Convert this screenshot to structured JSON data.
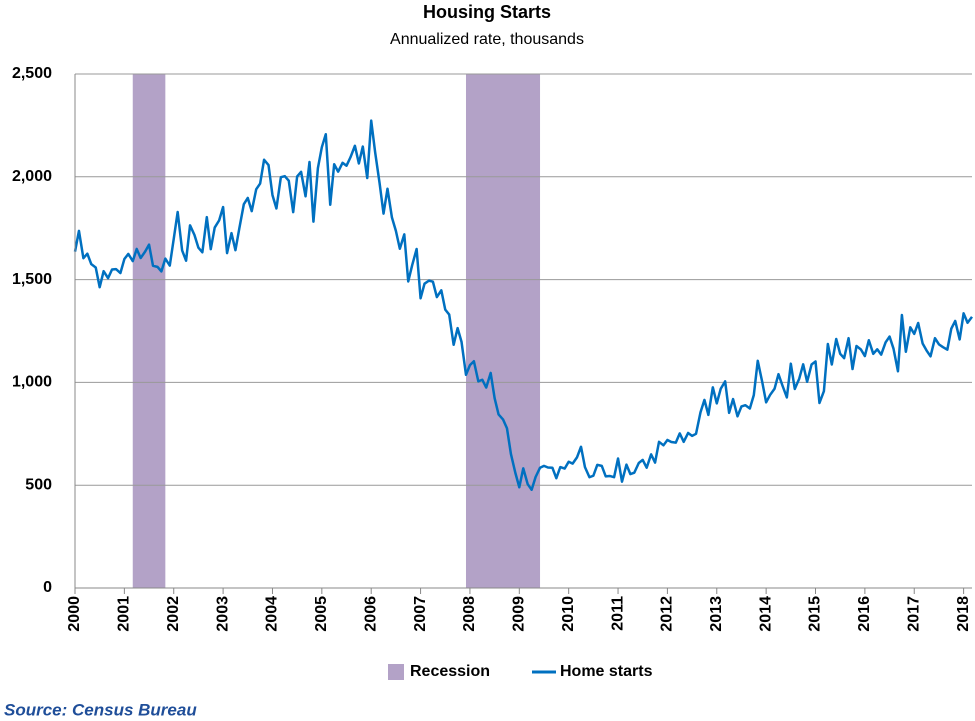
{
  "chart_data": {
    "type": "line",
    "title": "Housing Starts",
    "subtitle": "Annualized rate, thousands",
    "source": "Source: Census Bureau",
    "x": [
      2000,
      2000.08,
      2000.17,
      2000.25,
      2000.33,
      2000.42,
      2000.5,
      2000.58,
      2000.67,
      2000.75,
      2000.83,
      2000.92,
      2001,
      2001.08,
      2001.17,
      2001.25,
      2001.33,
      2001.42,
      2001.5,
      2001.58,
      2001.67,
      2001.75,
      2001.83,
      2001.92,
      2002,
      2002.08,
      2002.17,
      2002.25,
      2002.33,
      2002.42,
      2002.5,
      2002.58,
      2002.67,
      2002.75,
      2002.83,
      2002.92,
      2003,
      2003.08,
      2003.17,
      2003.25,
      2003.33,
      2003.42,
      2003.5,
      2003.58,
      2003.67,
      2003.75,
      2003.83,
      2003.92,
      2004,
      2004.08,
      2004.17,
      2004.25,
      2004.33,
      2004.42,
      2004.5,
      2004.58,
      2004.67,
      2004.75,
      2004.83,
      2004.92,
      2005,
      2005.08,
      2005.17,
      2005.25,
      2005.33,
      2005.42,
      2005.5,
      2005.58,
      2005.67,
      2005.75,
      2005.83,
      2005.92,
      2006,
      2006.08,
      2006.17,
      2006.25,
      2006.33,
      2006.42,
      2006.5,
      2006.58,
      2006.67,
      2006.75,
      2006.83,
      2006.92,
      2007,
      2007.08,
      2007.17,
      2007.25,
      2007.33,
      2007.42,
      2007.5,
      2007.58,
      2007.67,
      2007.75,
      2007.83,
      2007.92,
      2008,
      2008.08,
      2008.17,
      2008.25,
      2008.33,
      2008.42,
      2008.5,
      2008.58,
      2008.67,
      2008.75,
      2008.83,
      2008.92,
      2009,
      2009.08,
      2009.17,
      2009.25,
      2009.33,
      2009.42,
      2009.5,
      2009.58,
      2009.67,
      2009.75,
      2009.83,
      2009.92,
      2010,
      2010.08,
      2010.17,
      2010.25,
      2010.33,
      2010.42,
      2010.5,
      2010.58,
      2010.67,
      2010.75,
      2010.83,
      2010.92,
      2011,
      2011.08,
      2011.17,
      2011.25,
      2011.33,
      2011.42,
      2011.5,
      2011.58,
      2011.67,
      2011.75,
      2011.83,
      2011.92,
      2012,
      2012.08,
      2012.17,
      2012.25,
      2012.33,
      2012.42,
      2012.5,
      2012.58,
      2012.67,
      2012.75,
      2012.83,
      2012.92,
      2013,
      2013.08,
      2013.17,
      2013.25,
      2013.33,
      2013.42,
      2013.5,
      2013.58,
      2013.67,
      2013.75,
      2013.83,
      2013.92,
      2014,
      2014.08,
      2014.17,
      2014.25,
      2014.33,
      2014.42,
      2014.5,
      2014.58,
      2014.67,
      2014.75,
      2014.83,
      2014.92,
      2015,
      2015.08,
      2015.17,
      2015.25,
      2015.33,
      2015.42,
      2015.5,
      2015.58,
      2015.67,
      2015.75,
      2015.83,
      2015.92,
      2016,
      2016.08,
      2016.17,
      2016.25,
      2016.33,
      2016.42,
      2016.5,
      2016.58,
      2016.67,
      2016.75,
      2016.83,
      2016.92,
      2017,
      2017.08,
      2017.17,
      2017.25,
      2017.33,
      2017.42,
      2017.5,
      2017.58,
      2017.67,
      2017.75,
      2017.83,
      2017.92,
      2018,
      2018.08,
      2018.17
    ],
    "series": [
      {
        "name": "Home starts",
        "color": "#0070c0",
        "values": [
          1636,
          1737,
          1604,
          1626,
          1575,
          1559,
          1463,
          1541,
          1507,
          1549,
          1551,
          1532,
          1600,
          1625,
          1590,
          1649,
          1605,
          1636,
          1670,
          1567,
          1562,
          1540,
          1602,
          1568,
          1698,
          1829,
          1642,
          1592,
          1764,
          1717,
          1655,
          1633,
          1804,
          1648,
          1753,
          1788,
          1853,
          1629,
          1726,
          1643,
          1751,
          1867,
          1897,
          1833,
          1939,
          1967,
          2083,
          2057,
          1911,
          1846,
          1998,
          2003,
          1981,
          1828,
          2002,
          2024,
          1905,
          2072,
          1782,
          2042,
          2144,
          2207,
          1864,
          2061,
          2025,
          2068,
          2054,
          2095,
          2151,
          2065,
          2147,
          1994,
          2273,
          2119,
          1969,
          1821,
          1942,
          1802,
          1737,
          1650,
          1720,
          1491,
          1570,
          1649,
          1409,
          1480,
          1495,
          1490,
          1415,
          1448,
          1354,
          1330,
          1183,
          1264,
          1197,
          1037,
          1084,
          1103,
          1005,
          1013,
          975,
          1046,
          923,
          844,
          820,
          777,
          652,
          560,
          490,
          582,
          505,
          478,
          540,
          585,
          594,
          586,
          585,
          534,
          588,
          581,
          614,
          605,
          636,
          687,
          588,
          539,
          546,
          599,
          594,
          543,
          545,
          539,
          630,
          517,
          600,
          554,
          561,
          608,
          623,
          585,
          650,
          610,
          711,
          694,
          720,
          710,
          707,
          752,
          711,
          754,
          740,
          750,
          854,
          915,
          842,
          976,
          898,
          969,
          1005,
          852,
          919,
          835,
          883,
          889,
          873,
          938,
          1105,
          1003,
          903,
          939,
          969,
          1040,
          985,
          927,
          1091,
          968,
          1018,
          1088,
          1003,
          1087,
          1102,
          900,
          957,
          1187,
          1087,
          1211,
          1139,
          1118,
          1215,
          1065,
          1177,
          1160,
          1128,
          1205,
          1139,
          1161,
          1135,
          1195,
          1223,
          1164,
          1054,
          1328,
          1149,
          1268,
          1236,
          1289,
          1189,
          1155,
          1127,
          1215,
          1185,
          1172,
          1159,
          1261,
          1299,
          1209,
          1336,
          1290,
          1319
        ]
      }
    ],
    "recession": {
      "name": "Recession",
      "color": "#b3a2c7",
      "spans": [
        [
          2001.17,
          2001.83
        ],
        [
          2007.92,
          2009.42
        ]
      ]
    },
    "xlim": [
      2000,
      2018.17
    ],
    "xticks": [
      2000,
      2001,
      2002,
      2003,
      2004,
      2005,
      2006,
      2007,
      2008,
      2009,
      2010,
      2011,
      2012,
      2013,
      2014,
      2015,
      2016,
      2017,
      2018
    ],
    "ylim": [
      0,
      2500
    ],
    "yticks": [
      0,
      500,
      {
        "value": 1000,
        "label": "1,000"
      },
      {
        "value": 1500,
        "label": "1,500"
      },
      {
        "value": 2000,
        "label": "2,000"
      },
      {
        "value": 2500,
        "label": "2,500"
      }
    ],
    "grid": true
  }
}
